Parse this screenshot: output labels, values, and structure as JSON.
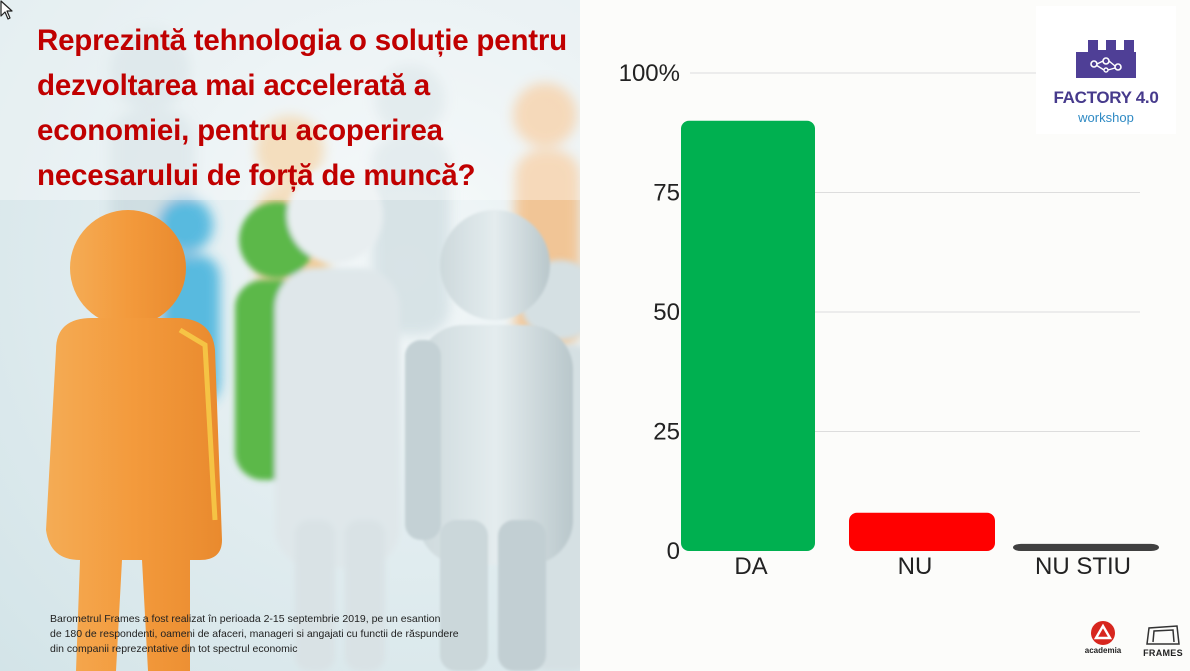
{
  "question": "Reprezintă tehnologia o soluție pentru dezvoltarea mai accelerată a economiei, pentru acoperirea necesarului de forță de muncă?",
  "footnote": {
    "line1": "Barometrul Frames a fost realizat în perioada 2-15 septembrie 2019,  pe un esantion",
    "line2": "de 180 de respondenti,  oameni de afaceri, manageri si angajati cu functii de răspundere",
    "line3": "din companii reprezentative din tot spectrul economic"
  },
  "logo": {
    "title": "FACTORY 4.0",
    "subtitle": "workshop",
    "icon": "factory-network-icon"
  },
  "brands": [
    {
      "name": "academia",
      "label": "academia",
      "icon": "academia-logo-icon"
    },
    {
      "name": "frames",
      "label": "FRAMES",
      "icon": "frames-logo-icon"
    }
  ],
  "chart_data": {
    "type": "bar",
    "categories": [
      "DA",
      "NU",
      "NU STIU"
    ],
    "values": [
      90,
      8,
      1.5
    ],
    "colors": [
      "#00b050",
      "#ff0000",
      "#404040"
    ],
    "ylim": [
      0,
      100
    ],
    "yticks": [
      0,
      25,
      50,
      75,
      100
    ],
    "ytick_labels": [
      "0",
      "25",
      "50",
      "75",
      "100%"
    ],
    "grid": true
  }
}
